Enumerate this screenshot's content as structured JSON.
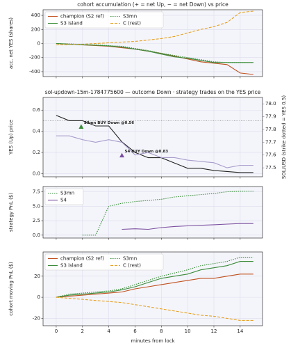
{
  "chart_data": [
    {
      "type": "line",
      "title": "cohort accumulation (+ = net Up, − = net Down) vs price",
      "ylabel": "acc. net YES (shares)",
      "x": [
        0,
        1,
        2,
        3,
        4,
        5,
        6,
        7,
        8,
        9,
        10,
        11,
        12,
        13,
        14,
        15
      ],
      "series": [
        {
          "name": "champion (S2 ref)",
          "color": "#c0501f",
          "dash": "solid",
          "values": [
            0,
            -10,
            -20,
            -30,
            -40,
            -60,
            -80,
            -110,
            -140,
            -180,
            -220,
            -260,
            -280,
            -300,
            -420,
            -440
          ]
        },
        {
          "name": "S3 island",
          "color": "#3a8c3a",
          "dash": "solid",
          "values": [
            0,
            -10,
            -20,
            -25,
            -35,
            -50,
            -80,
            -110,
            -150,
            -190,
            -210,
            -240,
            -270,
            -270,
            -270,
            -270
          ]
        },
        {
          "name": "S3mn",
          "color": "#3a8c3a",
          "dash": "dotted",
          "values": [
            0,
            -5,
            -15,
            -20,
            -30,
            -40,
            -70,
            -100,
            -140,
            -170,
            -200,
            -230,
            -260,
            -270,
            -270,
            -270
          ]
        },
        {
          "name": "C (rest)",
          "color": "#e8a020",
          "dash": "dashed",
          "values": [
            -20,
            -15,
            -10,
            0,
            10,
            20,
            30,
            50,
            70,
            100,
            150,
            200,
            240,
            300,
            440,
            460
          ]
        }
      ],
      "xlim": [
        -1,
        15.7
      ],
      "ylim": [
        -470,
        480
      ],
      "yticks": [
        -400,
        -200,
        0,
        200,
        400
      ],
      "grid": true,
      "legend": "upper left",
      "legend_columns": 2
    },
    {
      "type": "line",
      "title": "sol-updown-15m-1784775600 — outcome Down · strategy trades on the YES price",
      "ylabel": "YES (Up) price",
      "y2label": "SOL/USD (strike dotted = YES 0.5)",
      "x": [
        0,
        1,
        2,
        3,
        4,
        5,
        6,
        7,
        8,
        9,
        10,
        11,
        12,
        13,
        14,
        15
      ],
      "series": [
        {
          "name": "YES price",
          "color": "#222222",
          "dash": "solid",
          "values": [
            0.55,
            0.5,
            0.5,
            0.45,
            0.45,
            0.3,
            0.2,
            0.15,
            0.15,
            0.1,
            0.05,
            0.05,
            0.03,
            0.02,
            0.01,
            0.01
          ]
        },
        {
          "name": "SOL/USD",
          "color": "#a89ccc",
          "dash": "solid",
          "axis": "y2",
          "values": [
            77.75,
            77.75,
            77.72,
            77.7,
            77.72,
            77.7,
            77.6,
            77.62,
            77.58,
            77.58,
            77.56,
            77.55,
            77.54,
            77.5,
            77.52,
            77.52
          ]
        }
      ],
      "trades": [
        {
          "label": "S3mn BUY Down @0.56",
          "x": 1.9,
          "y": 0.44,
          "color": "#3a8c3a"
        },
        {
          "label": "S4 BUY Down @0.83",
          "x": 5,
          "y": 0.17,
          "color": "#7b4fa0"
        }
      ],
      "strike_line": 0.5,
      "xlim": [
        -1,
        15.7
      ],
      "ylim": [
        -0.03,
        0.72
      ],
      "yticks": [
        {
          "value": 0,
          "label": "0.0"
        },
        0.2,
        0.4,
        0.6
      ],
      "y2lim": [
        77.43,
        78.05
      ],
      "y2ticks": [
        77.5,
        77.6,
        77.7,
        77.8,
        77.9,
        {
          "value": 78,
          "label": "78.0"
        }
      ],
      "grid": true
    },
    {
      "type": "line",
      "ylabel": "strategy PnL ($)",
      "x": [
        0,
        1,
        2,
        3,
        4,
        5,
        6,
        7,
        8,
        9,
        10,
        11,
        12,
        13,
        14,
        15
      ],
      "series": [
        {
          "name": "S3mn",
          "color": "#3a8c3a",
          "dash": "dotted",
          "values": [
            null,
            null,
            0,
            0,
            5,
            5.5,
            5.8,
            6,
            6.2,
            6.6,
            6.8,
            7,
            7.2,
            7.5,
            7.6,
            7.6
          ]
        },
        {
          "name": "S4",
          "color": "#7b4fa0",
          "dash": "solid",
          "values": [
            null,
            null,
            null,
            null,
            null,
            1,
            1.1,
            1,
            1.3,
            1.5,
            1.6,
            1.7,
            1.8,
            1.9,
            2,
            2
          ]
        }
      ],
      "xlim": [
        -1,
        15.7
      ],
      "ylim": [
        -0.5,
        8.4
      ],
      "yticks": [
        {
          "value": 0,
          "label": "0.0"
        },
        2.5,
        {
          "value": 5,
          "label": "5.0"
        },
        7.5
      ],
      "grid": true,
      "legend": "upper left",
      "legend_columns": 1
    },
    {
      "type": "line",
      "ylabel": "cohort moving PnL ($)",
      "xlabel": "minutes from lock",
      "x": [
        0,
        1,
        2,
        3,
        4,
        5,
        6,
        7,
        8,
        9,
        10,
        11,
        12,
        13,
        14,
        15
      ],
      "series": [
        {
          "name": "champion (S2 ref)",
          "color": "#c0501f",
          "dash": "solid",
          "values": [
            0,
            1,
            2,
            3,
            4,
            5,
            8,
            10,
            12,
            14,
            16,
            18,
            18,
            20,
            22,
            22
          ]
        },
        {
          "name": "S3 island",
          "color": "#3a8c3a",
          "dash": "solid",
          "values": [
            0,
            2,
            3,
            4,
            5,
            7,
            10,
            14,
            18,
            20,
            22,
            26,
            28,
            30,
            34,
            34
          ]
        },
        {
          "name": "S3mn",
          "color": "#3a8c3a",
          "dash": "dotted",
          "values": [
            0,
            3,
            4,
            5,
            6,
            8,
            12,
            16,
            20,
            23,
            26,
            30,
            32,
            34,
            38,
            38
          ]
        },
        {
          "name": "C (rest)",
          "color": "#e8a020",
          "dash": "dashed",
          "values": [
            0,
            -1,
            -2,
            -3,
            -4,
            -5,
            -7,
            -9,
            -11,
            -13,
            -15,
            -17,
            -18,
            -20,
            -22,
            -22
          ]
        }
      ],
      "xlim": [
        -1,
        15.7
      ],
      "ylim": [
        -27,
        43
      ],
      "yticks": [
        -20,
        0,
        20
      ],
      "xticks": [
        0,
        2,
        4,
        6,
        8,
        10,
        12,
        14
      ],
      "grid": true,
      "legend": "upper left",
      "legend_columns": 2
    }
  ]
}
